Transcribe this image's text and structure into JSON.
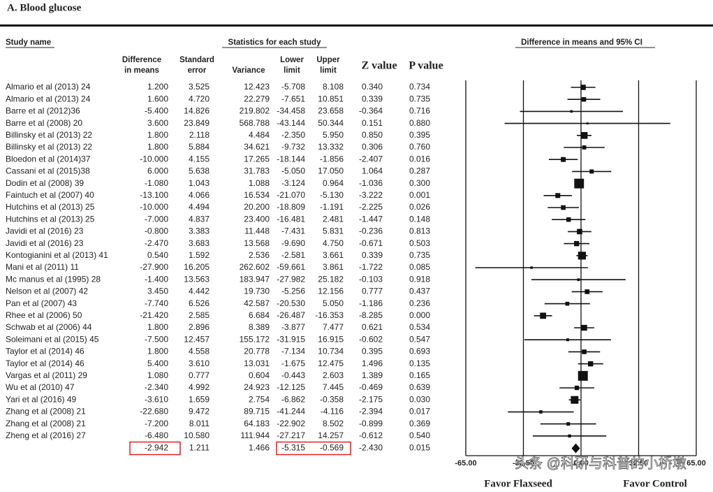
{
  "title": "A. Blood glucose",
  "watermark": "头条 @科研与科普的小桥墩",
  "chart_data": {
    "type": "forest",
    "study_header": "Study name",
    "stats_header": "Statistics for each study",
    "plot_header": "Difference in means and 95% CI",
    "categories": [
      "Almario et al (2013) 24",
      "Almario et al (2013) 24",
      "Barre  et al (2012)36",
      "Barre et al (2008) 20",
      "Billinsky et al (2013) 22",
      "Billinsky et al (2013) 22",
      "Bloedon et al (2014)37",
      "Cassani et al (2015)38",
      "Dodin et al (2008) 39",
      "Faintuch et al (2007) 40",
      "Hutchins et al (2013) 25",
      "Hutchins et al (2013) 25",
      "Javidi et al (2016) 23",
      "Javidi et al (2016)  23",
      "Kontogianini et al (2013) 41",
      "Mani et al (2011) 11",
      "Mc manus et al (1995) 28",
      "Nelson et al (2007) 42",
      "Pan et al (2007) 43",
      "Rhee et al (2006) 50",
      "Schwab et al (2006) 44",
      "Soleimani et al (2015) 45",
      "Taylor et al (2014) 46",
      "Taylor et al (2014) 46",
      "Vargas et al (2011) 29",
      "Wu et al (2010) 47",
      "Yari et al (2016) 49",
      "Zhang et al (2008) 21",
      "Zhang et al (2008) 21",
      "Zheng et al  (2016) 27"
    ],
    "columns": [
      {
        "header": [
          "Difference",
          "in means"
        ],
        "values": [
          1.2,
          1.6,
          -5.4,
          3.6,
          1.8,
          1.8,
          -10,
          6,
          -1.08,
          -13.1,
          -10,
          -7,
          -0.8,
          -2.47,
          0.54,
          -27.9,
          -1.4,
          3.45,
          -7.74,
          -21.42,
          1.8,
          -7.5,
          1.8,
          5.4,
          1.08,
          -2.34,
          -3.61,
          -22.68,
          -7.2,
          -6.48
        ],
        "value_labels": [
          "1.200",
          "1.600",
          "-5.400",
          "3.600",
          "1.800",
          "1.800",
          "-10.000",
          "6.000",
          "-1.080",
          "-13.100",
          "-10.000",
          "-7.000",
          "-0.800",
          "-2.470",
          "0.540",
          "-27.900",
          "-1.400",
          "3.450",
          "-7.740",
          "-21.420",
          "1.800",
          "-7.500",
          "1.800",
          "5.400",
          "1.080",
          "-2.340",
          "-3.610",
          "-22.680",
          "-7.200",
          "-6.480"
        ],
        "total": -2.942,
        "total_label": "-2.942"
      },
      {
        "header": [
          "Standard",
          "error"
        ],
        "cells": [
          "3.525",
          "4.720",
          "14.826",
          "23.849",
          "2.118",
          "5.884",
          "4.155",
          "5.638",
          "1.043",
          "4.066",
          "4.494",
          "4.837",
          "3.383",
          "3.683",
          "1.592",
          "16.205",
          "13.563",
          "4.442",
          "6.526",
          "2.585",
          "2.896",
          "12.457",
          "4.558",
          "3.610",
          "0.777",
          "4.992",
          "1.659",
          "9.472",
          "8.011",
          "10.580"
        ],
        "total_label": "1.211"
      },
      {
        "header": [
          "Variance"
        ],
        "cells": [
          "12.423",
          "22.279",
          "219.802",
          "568.788",
          "4.484",
          "34.621",
          "17.265",
          "31.783",
          "1.088",
          "16.534",
          "20.200",
          "23.400",
          "11.448",
          "13.568",
          "2.536",
          "262.602",
          "183.947",
          "19.730",
          "42.587",
          "6.684",
          "8.389",
          "155.172",
          "20.778",
          "13.031",
          "0.604",
          "24.923",
          "2.754",
          "89.715",
          "64.183",
          "111.944"
        ],
        "total_label": "1.466"
      },
      {
        "header": [
          "Lower",
          "limit"
        ],
        "values": [
          -5.708,
          -7.651,
          -34.458,
          -43.144,
          -2.35,
          -9.732,
          -18.144,
          -5.05,
          -3.124,
          -21.07,
          -18.809,
          -16.481,
          -7.431,
          -9.69,
          -2.581,
          -59.661,
          -27.982,
          -5.256,
          -20.53,
          -26.487,
          -3.877,
          -31.915,
          -7.134,
          -1.675,
          -0.443,
          -12.125,
          -6.862,
          -41.244,
          -22.902,
          -27.217
        ],
        "value_labels": [
          "-5.708",
          "-7.651",
          "-34.458",
          "-43.144",
          "-2.350",
          "-9.732",
          "-18.144",
          "-5.050",
          "-3.124",
          "-21.070",
          "-18.809",
          "-16.481",
          "-7.431",
          "-9.690",
          "-2.581",
          "-59.661",
          "-27.982",
          "-5.256",
          "-20.530",
          "-26.487",
          "-3.877",
          "-31.915",
          "-7.134",
          "-1.675",
          "-0.443",
          "-12.125",
          "-6.862",
          "-41.244",
          "-22.902",
          "-27.217"
        ],
        "total": -5.315,
        "total_label": "-5.315"
      },
      {
        "header": [
          "Upper",
          "limit"
        ],
        "values": [
          8.108,
          10.851,
          23.658,
          50.344,
          5.95,
          13.332,
          -1.856,
          17.05,
          0.964,
          -5.13,
          -1.191,
          2.481,
          5.831,
          4.75,
          3.661,
          3.861,
          25.182,
          12.156,
          5.05,
          -16.353,
          7.477,
          16.915,
          10.734,
          12.475,
          2.603,
          7.445,
          -0.358,
          -4.116,
          8.502,
          14.257
        ],
        "value_labels": [
          "8.108",
          "10.851",
          "23.658",
          "50.344",
          "5.950",
          "13.332",
          "-1.856",
          "17.050",
          "0.964",
          "-5.130",
          "-1.191",
          "2.481",
          "5.831",
          "4.750",
          "3.661",
          "3.861",
          "25.182",
          "12.156",
          "5.050",
          "-16.353",
          "7.477",
          "16.915",
          "10.734",
          "12.475",
          "2.603",
          "7.445",
          "-0.358",
          "-4.116",
          "8.502",
          "14.257"
        ],
        "total": -0.569,
        "total_label": "-0.569"
      },
      {
        "header": [
          "Z value"
        ],
        "cells": [
          "0.340",
          "0.339",
          "-0.364",
          "0.151",
          "0.850",
          "0.306",
          "-2.407",
          "1.064",
          "-1.036",
          "-3.222",
          "-2.225",
          "-1.447",
          "-0.236",
          "-0.671",
          "0.339",
          "-1.722",
          "-0.103",
          "0.777",
          "-1.186",
          "-8.285",
          "0.621",
          "-0.602",
          "0.395",
          "1.496",
          "1.389",
          "-0.469",
          "-2.175",
          "-2.394",
          "-0.899",
          "-0.612"
        ],
        "total_label": "-2.430"
      },
      {
        "header": [
          "P value"
        ],
        "cells": [
          "0.734",
          "0.735",
          "0.716",
          "0.880",
          "0.395",
          "0.760",
          "0.016",
          "0.287",
          "0.300",
          "0.001",
          "0.026",
          "0.148",
          "0.813",
          "0.503",
          "0.735",
          "0.085",
          "0.918",
          "0.437",
          "0.236",
          "0.000",
          "0.534",
          "0.547",
          "0.693",
          "0.135",
          "0.165",
          "0.639",
          "0.030",
          "0.017",
          "0.369",
          "0.540"
        ],
        "total_label": "0.015"
      }
    ],
    "xlim": [
      -65,
      65
    ],
    "xticks": [
      {
        "value": -65,
        "label": "-65.00"
      },
      {
        "value": -32.5,
        "label": "-32.50"
      },
      {
        "value": 0,
        "label": "0.00"
      },
      {
        "value": 32.5,
        "label": "32.50"
      },
      {
        "value": 65,
        "label": "65.00"
      }
    ],
    "x_labels": [
      "Favor Flaxseed",
      "Favor Control"
    ],
    "grid": true,
    "color": "#111111",
    "highlight_color": "#e02020"
  }
}
